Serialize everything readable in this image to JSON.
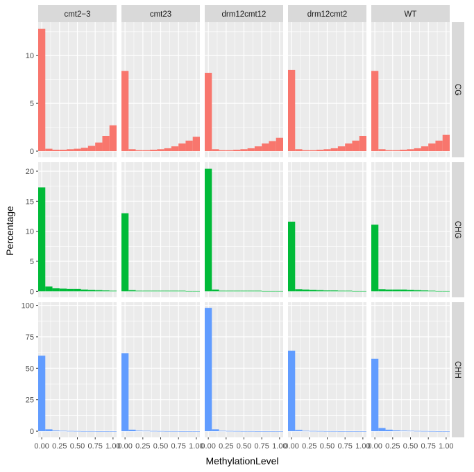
{
  "chart_data": {
    "type": "bar",
    "subtype": "faceted-histogram",
    "xlabel": "MethylationLevel",
    "ylabel": "Percentage",
    "columns": [
      "cmt2−3",
      "cmt23",
      "drm12cmt12",
      "drm12cmt2",
      "WT"
    ],
    "rows": [
      "CG",
      "CHG",
      "CHH"
    ],
    "xlim": [
      -0.05,
      1.05
    ],
    "x_ticks": [
      "0.00",
      "0.25",
      "0.50",
      "0.75",
      "1.00"
    ],
    "x_tick_values": [
      0,
      0.25,
      0.5,
      0.75,
      1.0
    ],
    "bin_centers": [
      0.0,
      0.1,
      0.2,
      0.3,
      0.4,
      0.5,
      0.6,
      0.7,
      0.8,
      0.9,
      1.0
    ],
    "row_scales": {
      "CG": {
        "ylim": [
          -0.65,
          13.5
        ],
        "y_ticks": [
          0,
          5,
          10
        ]
      },
      "CHG": {
        "ylim": [
          -1.0,
          21.5
        ],
        "y_ticks": [
          0,
          5,
          10,
          15,
          20
        ]
      },
      "CHH": {
        "ylim": [
          -4.9,
          102.5
        ],
        "y_ticks": [
          0,
          25,
          50,
          75,
          100
        ]
      }
    },
    "colors": {
      "CG": "#F8766D",
      "CHG": "#00BA38",
      "CHH": "#619CFF"
    },
    "series": {
      "CG": {
        "cmt2−3": [
          12.8,
          0.25,
          0.15,
          0.15,
          0.2,
          0.25,
          0.35,
          0.55,
          0.9,
          1.6,
          2.7
        ],
        "cmt23": [
          8.4,
          0.2,
          0.1,
          0.1,
          0.15,
          0.2,
          0.3,
          0.5,
          0.8,
          1.1,
          1.5
        ],
        "drm12cmt12": [
          8.2,
          0.2,
          0.1,
          0.1,
          0.15,
          0.2,
          0.3,
          0.5,
          0.8,
          1.05,
          1.4
        ],
        "drm12cmt2": [
          8.5,
          0.2,
          0.1,
          0.1,
          0.15,
          0.2,
          0.3,
          0.5,
          0.8,
          1.1,
          1.6
        ],
        "WT": [
          8.4,
          0.2,
          0.1,
          0.1,
          0.15,
          0.2,
          0.3,
          0.5,
          0.8,
          1.1,
          1.7
        ]
      },
      "CHG": {
        "cmt2−3": [
          17.3,
          0.8,
          0.5,
          0.45,
          0.4,
          0.4,
          0.3,
          0.25,
          0.2,
          0.15,
          0.1
        ],
        "cmt23": [
          13.0,
          0.2,
          0.1,
          0.1,
          0.1,
          0.1,
          0.1,
          0.1,
          0.1,
          0.05,
          0.05
        ],
        "drm12cmt12": [
          20.4,
          0.3,
          0.1,
          0.1,
          0.1,
          0.1,
          0.1,
          0.1,
          0.05,
          0.05,
          0.05
        ],
        "drm12cmt2": [
          11.6,
          0.35,
          0.3,
          0.25,
          0.2,
          0.15,
          0.15,
          0.1,
          0.1,
          0.05,
          0.05
        ],
        "WT": [
          11.1,
          0.35,
          0.3,
          0.3,
          0.3,
          0.25,
          0.2,
          0.15,
          0.1,
          0.05,
          0.05
        ]
      },
      "CHH": {
        "cmt2−3": [
          60.0,
          1.5,
          0.5,
          0.3,
          0.2,
          0.15,
          0.1,
          0.1,
          0.05,
          0.05,
          0.05
        ],
        "cmt23": [
          62.0,
          1.2,
          0.4,
          0.3,
          0.2,
          0.15,
          0.1,
          0.1,
          0.05,
          0.05,
          0.05
        ],
        "drm12cmt12": [
          98.0,
          1.5,
          0.3,
          0.2,
          0.15,
          0.1,
          0.1,
          0.05,
          0.05,
          0.05,
          0.05
        ],
        "drm12cmt2": [
          64.0,
          1.0,
          0.3,
          0.2,
          0.15,
          0.1,
          0.1,
          0.05,
          0.05,
          0.05,
          0.05
        ],
        "WT": [
          57.5,
          2.5,
          1.2,
          0.6,
          0.4,
          0.3,
          0.2,
          0.15,
          0.1,
          0.05,
          0.05
        ]
      }
    }
  }
}
